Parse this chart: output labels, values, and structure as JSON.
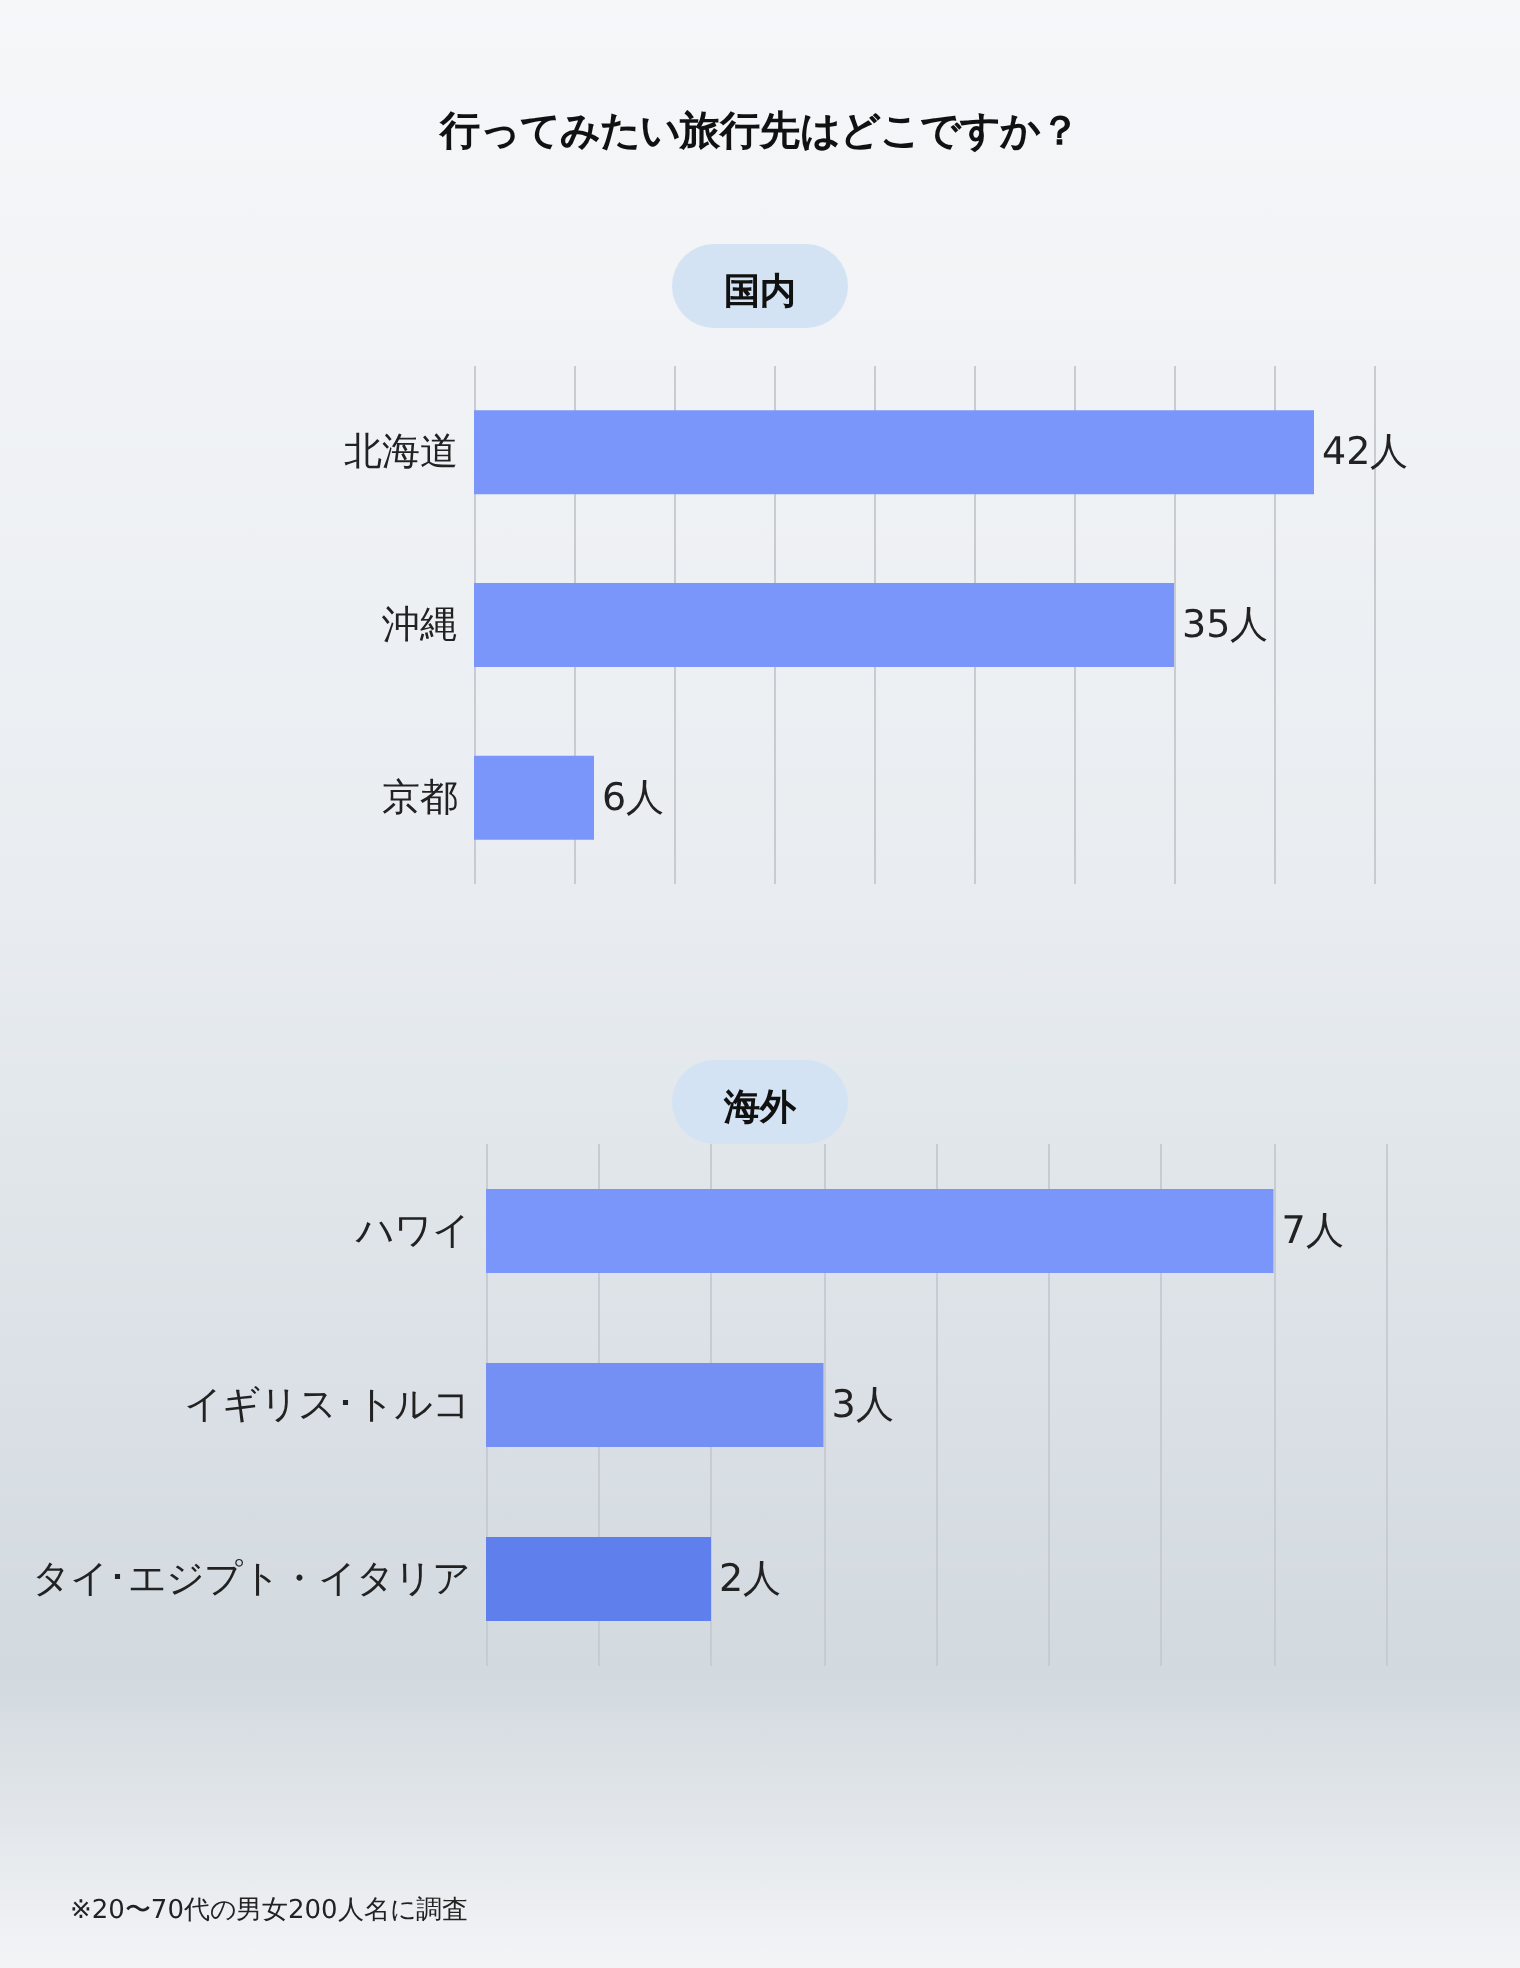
{
  "chart_data": [
    {
      "type": "bar",
      "orientation": "horizontal",
      "title": "行ってみたい旅行先はどこですか？",
      "subtitle": "国内",
      "categories": [
        "北海道",
        "沖縄",
        "京都"
      ],
      "values": [
        42,
        35,
        6
      ],
      "colors": [
        "#7b96fb",
        "#7b96fb",
        "#7b96fb"
      ],
      "value_labels": [
        "42人",
        "35人",
        "6人"
      ],
      "xlim": [
        0,
        45
      ],
      "xticks": [
        {
          "value": 0,
          "label": null
        },
        {
          "value": 5,
          "label": null
        },
        {
          "value": 10,
          "label": null
        },
        {
          "value": 15,
          "label": null
        },
        {
          "value": 20,
          "label": null
        },
        {
          "value": 25,
          "label": null
        },
        {
          "value": 30,
          "label": null
        },
        {
          "value": 35,
          "label": null
        },
        {
          "value": 40,
          "label": null
        },
        {
          "value": 45,
          "label": null
        }
      ],
      "grid": "x",
      "tick_labels": "y"
    },
    {
      "type": "bar",
      "orientation": "horizontal",
      "subtitle": "海外",
      "categories": [
        "ハワイ",
        "イギリス･トルコ",
        "タイ･エジプト・イタリア"
      ],
      "values": [
        7,
        3,
        2
      ],
      "colors": [
        "#7b96fb",
        "#7590f5",
        "#5f7fec"
      ],
      "value_labels": [
        "7人",
        "3人",
        "2人"
      ],
      "xlim": [
        0,
        8
      ],
      "xticks": [
        {
          "value": 0,
          "label": null
        },
        {
          "value": 1,
          "label": null
        },
        {
          "value": 2,
          "label": null
        },
        {
          "value": 3,
          "label": null
        },
        {
          "value": 4,
          "label": null
        },
        {
          "value": 5,
          "label": null
        },
        {
          "value": 6,
          "label": null
        },
        {
          "value": 7,
          "label": null
        },
        {
          "value": 8,
          "label": null
        }
      ],
      "grid": "x",
      "tick_labels": "y",
      "annotations": [
        "※20〜70代の男女200人名に調査"
      ]
    }
  ]
}
